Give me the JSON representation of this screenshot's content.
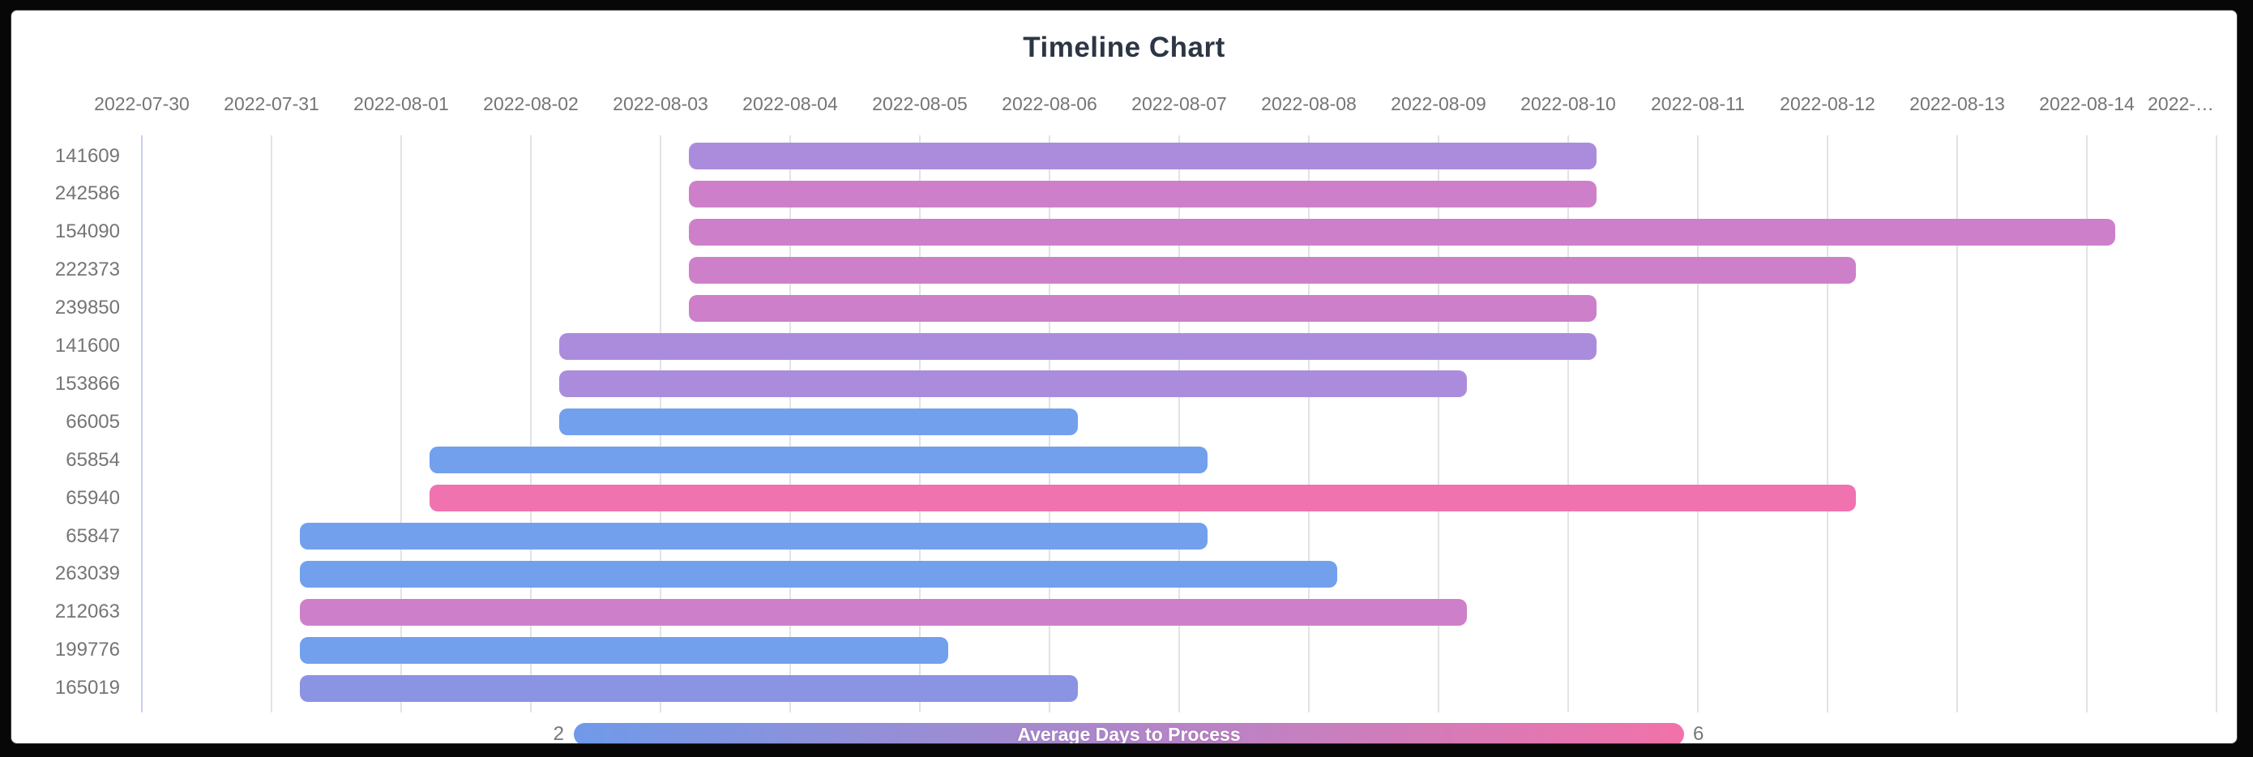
{
  "title": "Timeline Chart",
  "legend": {
    "label": "Average Days to Process",
    "min": "2",
    "max": "6",
    "gradient_start": "#6f9ae9",
    "gradient_end": "#f272a9"
  },
  "chart_data": {
    "type": "timeline",
    "title": "Timeline Chart",
    "x_axis": {
      "start": "2022-07-30",
      "tick_labels": [
        "2022-07-30",
        "2022-07-31",
        "2022-08-01",
        "2022-08-02",
        "2022-08-03",
        "2022-08-04",
        "2022-08-05",
        "2022-08-06",
        "2022-08-07",
        "2022-08-08",
        "2022-08-09",
        "2022-08-10",
        "2022-08-11",
        "2022-08-12",
        "2022-08-13",
        "2022-08-14",
        "2022-…"
      ],
      "grid": true
    },
    "color_scale": {
      "label": "Average Days to Process",
      "min": 2,
      "max": 6,
      "min_color": "#6f9ae9",
      "max_color": "#f272a9",
      "legend_position": "bottom"
    },
    "rows": [
      {
        "id": "141609",
        "start": "2022-08-03",
        "end": "2022-08-10",
        "duration_days": 7,
        "avg_days_to_process": 4,
        "color": "#ab8cdc"
      },
      {
        "id": "242586",
        "start": "2022-08-03",
        "end": "2022-08-10",
        "duration_days": 7,
        "avg_days_to_process": 5,
        "color": "#cd80c9"
      },
      {
        "id": "154090",
        "start": "2022-08-03",
        "end": "2022-08-14",
        "duration_days": 11,
        "avg_days_to_process": 5,
        "color": "#cd80c9"
      },
      {
        "id": "222373",
        "start": "2022-08-03",
        "end": "2022-08-12",
        "duration_days": 9,
        "avg_days_to_process": 5,
        "color": "#cd80c9"
      },
      {
        "id": "239850",
        "start": "2022-08-03",
        "end": "2022-08-10",
        "duration_days": 7,
        "avg_days_to_process": 5,
        "color": "#cd80c9"
      },
      {
        "id": "141600",
        "start": "2022-08-02",
        "end": "2022-08-10",
        "duration_days": 8,
        "avg_days_to_process": 4,
        "color": "#ab8cdc"
      },
      {
        "id": "153866",
        "start": "2022-08-02",
        "end": "2022-08-09",
        "duration_days": 7,
        "avg_days_to_process": 4,
        "color": "#ab8cdc"
      },
      {
        "id": "66005",
        "start": "2022-08-02",
        "end": "2022-08-06",
        "duration_days": 4,
        "avg_days_to_process": 2,
        "color": "#72a0ed"
      },
      {
        "id": "65854",
        "start": "2022-08-01",
        "end": "2022-08-07",
        "duration_days": 6,
        "avg_days_to_process": 2,
        "color": "#72a0ed"
      },
      {
        "id": "65940",
        "start": "2022-08-01",
        "end": "2022-08-12",
        "duration_days": 11,
        "avg_days_to_process": 6,
        "color": "#f073b0"
      },
      {
        "id": "65847",
        "start": "2022-07-31",
        "end": "2022-08-07",
        "duration_days": 7,
        "avg_days_to_process": 2,
        "color": "#72a0ed"
      },
      {
        "id": "263039",
        "start": "2022-07-31",
        "end": "2022-08-08",
        "duration_days": 8,
        "avg_days_to_process": 2,
        "color": "#72a0ed"
      },
      {
        "id": "212063",
        "start": "2022-07-31",
        "end": "2022-08-09",
        "duration_days": 9,
        "avg_days_to_process": 5,
        "color": "#cd80c9"
      },
      {
        "id": "199776",
        "start": "2022-07-31",
        "end": "2022-08-05",
        "duration_days": 5,
        "avg_days_to_process": 2,
        "color": "#72a0ed"
      },
      {
        "id": "165019",
        "start": "2022-07-31",
        "end": "2022-08-06",
        "duration_days": 6,
        "avg_days_to_process": 3,
        "color": "#8b93e3"
      }
    ]
  }
}
